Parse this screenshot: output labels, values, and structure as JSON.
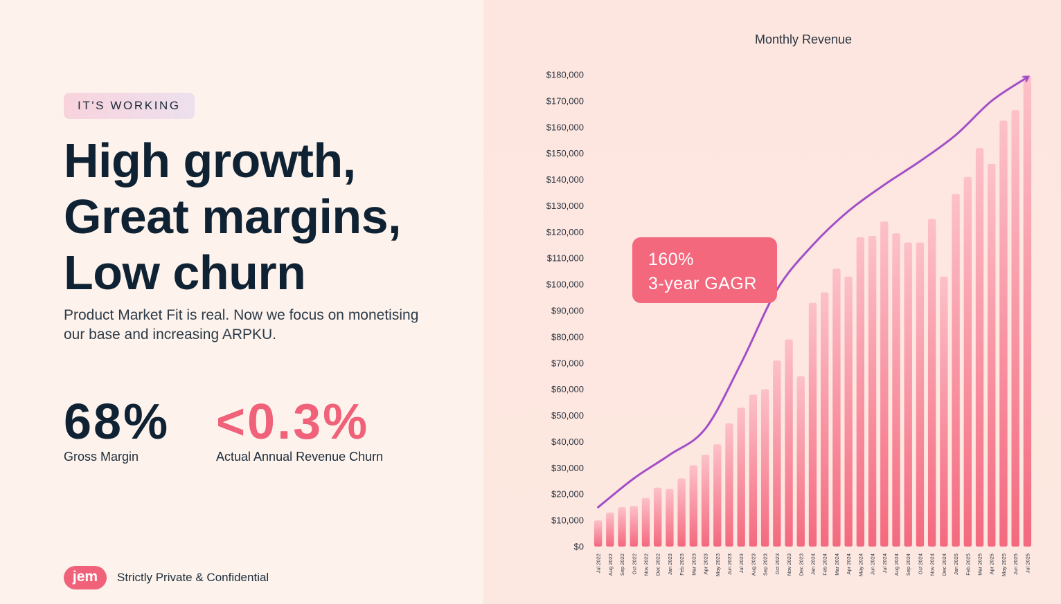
{
  "tag": "IT'S WORKING",
  "headline": [
    "High growth,",
    "Great margins,",
    "Low churn"
  ],
  "subtitle": "Product Market Fit is real. Now we focus on monetising our base and increasing ARPKU.",
  "stats": [
    {
      "value": "68%",
      "label": "Gross Margin"
    },
    {
      "value": "<0.3%",
      "label": "Actual Annual Revenue Churn"
    }
  ],
  "footer": {
    "logo": "jem",
    "text": "Strictly Private & Confidential"
  },
  "callout": {
    "line1": "160%",
    "line2": "3-year GAGR"
  },
  "colors": {
    "accent": "#f0627a",
    "trend": "#a24fc7",
    "navy": "#0f2233"
  },
  "chart_data": {
    "type": "bar",
    "title": "Monthly Revenue",
    "xlabel": "",
    "ylabel": "",
    "ylim": [
      0,
      180000
    ],
    "yticks": [
      0,
      10000,
      20000,
      30000,
      40000,
      50000,
      60000,
      70000,
      80000,
      90000,
      100000,
      110000,
      120000,
      130000,
      140000,
      150000,
      160000,
      170000,
      180000
    ],
    "ytick_labels": [
      "$0",
      "$10,000",
      "$20,000",
      "$30,000",
      "$40,000",
      "$50,000",
      "$60,000",
      "$70,000",
      "$80,000",
      "$90,000",
      "$100,000",
      "$110,000",
      "$120,000",
      "$130,000",
      "$140,000",
      "$150,000",
      "$160,000",
      "$170,000",
      "$180,000"
    ],
    "categories": [
      "Jul 2022",
      "Aug 2022",
      "Sep 2022",
      "Oct 2022",
      "Nov 2022",
      "Dec 2022",
      "Jan 2023",
      "Feb 2023",
      "Mar 2023",
      "Apr 2023",
      "May 2023",
      "Jun 2023",
      "Jul 2023",
      "Aug 2023",
      "Sep 2023",
      "Oct 2023",
      "Nov 2023",
      "Dec 2023",
      "Jan 2024",
      "Feb 2024",
      "Mar 2024",
      "Apr 2024",
      "May 2024",
      "Jun 2024",
      "Jul 2024",
      "Aug 2024",
      "Sep 2024",
      "Oct 2024",
      "Nov 2024",
      "Dec 2024",
      "Jan 2025",
      "Feb 2025",
      "Mar 2025",
      "Apr 2025",
      "May 2025",
      "Jun 2025",
      "Jul 2025"
    ],
    "values": [
      10000,
      13000,
      15000,
      15500,
      18500,
      22500,
      22000,
      26000,
      31000,
      35000,
      39000,
      47000,
      53000,
      58000,
      60000,
      71000,
      79000,
      65000,
      93000,
      97000,
      106000,
      103000,
      118000,
      118500,
      124000,
      119500,
      116000,
      116000,
      125000,
      103000,
      134500,
      141000,
      152000,
      146000,
      162500,
      166500,
      179500
    ],
    "trend_line": {
      "description": "growth trend arrow",
      "x_index": [
        0,
        3,
        6,
        9,
        12,
        15,
        18,
        21,
        24,
        27,
        30,
        33,
        36
      ],
      "y": [
        15000,
        26000,
        35000,
        45000,
        70000,
        98000,
        115000,
        128000,
        138000,
        147000,
        157000,
        170000,
        179000
      ]
    }
  }
}
